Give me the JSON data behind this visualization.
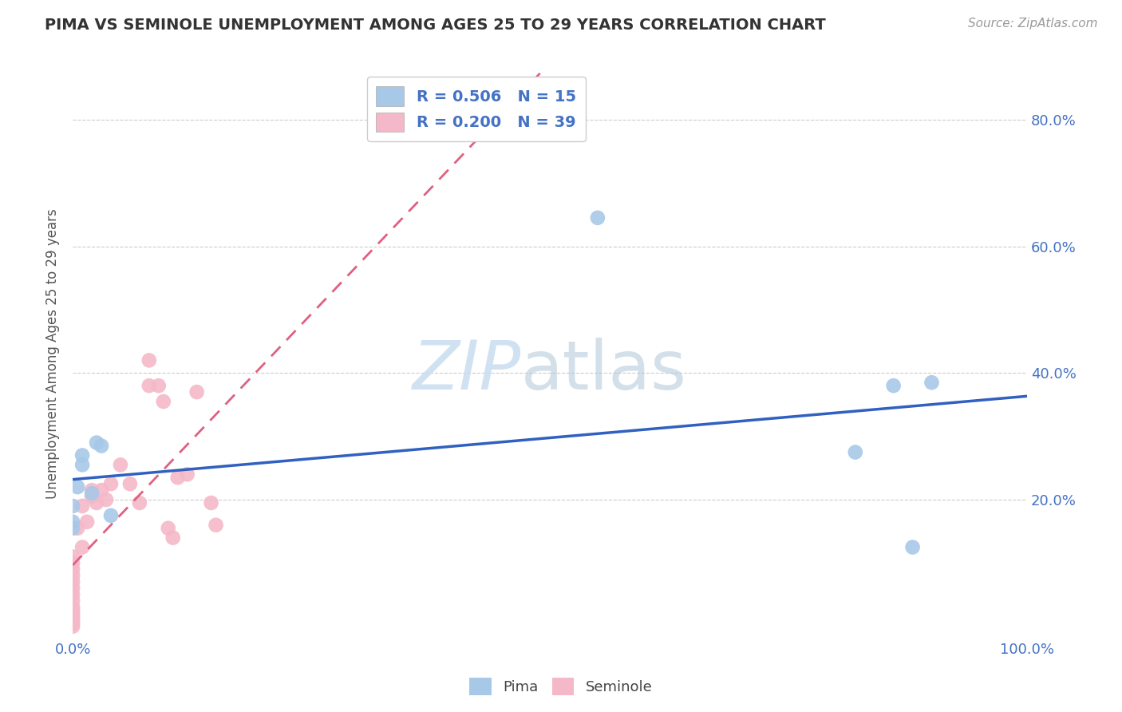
{
  "title": "PIMA VS SEMINOLE UNEMPLOYMENT AMONG AGES 25 TO 29 YEARS CORRELATION CHART",
  "source_text": "Source: ZipAtlas.com",
  "ylabel": "Unemployment Among Ages 25 to 29 years",
  "watermark_zip": "ZIP",
  "watermark_atlas": "atlas",
  "pima_R": 0.506,
  "pima_N": 15,
  "seminole_R": 0.2,
  "seminole_N": 39,
  "pima_color": "#a8c8e8",
  "seminole_color": "#f4b8c8",
  "pima_line_color": "#3060c0",
  "seminole_line_color": "#e06080",
  "xlim": [
    0.0,
    1.0
  ],
  "ylim": [
    -0.02,
    0.88
  ],
  "xtick_positions": [
    0.0,
    1.0
  ],
  "xtick_labels": [
    "0.0%",
    "100.0%"
  ],
  "ytick_positions": [
    0.2,
    0.4,
    0.6,
    0.8
  ],
  "ytick_labels": [
    "20.0%",
    "40.0%",
    "60.0%",
    "80.0%"
  ],
  "pima_x": [
    0.0,
    0.0,
    0.0,
    0.005,
    0.01,
    0.01,
    0.02,
    0.025,
    0.03,
    0.04,
    0.55,
    0.82,
    0.86,
    0.88,
    0.9
  ],
  "pima_y": [
    0.155,
    0.165,
    0.19,
    0.22,
    0.255,
    0.27,
    0.21,
    0.29,
    0.285,
    0.175,
    0.645,
    0.275,
    0.38,
    0.125,
    0.385
  ],
  "seminole_x": [
    0.0,
    0.0,
    0.0,
    0.0,
    0.0,
    0.0,
    0.0,
    0.0,
    0.0,
    0.0,
    0.0,
    0.0,
    0.0,
    0.0,
    0.0,
    0.005,
    0.01,
    0.01,
    0.015,
    0.02,
    0.02,
    0.025,
    0.03,
    0.035,
    0.04,
    0.05,
    0.06,
    0.07,
    0.08,
    0.08,
    0.09,
    0.095,
    0.1,
    0.105,
    0.11,
    0.12,
    0.13,
    0.145,
    0.15
  ],
  "seminole_y": [
    0.0,
    0.005,
    0.01,
    0.015,
    0.02,
    0.025,
    0.03,
    0.04,
    0.05,
    0.06,
    0.07,
    0.08,
    0.09,
    0.1,
    0.11,
    0.155,
    0.125,
    0.19,
    0.165,
    0.205,
    0.215,
    0.195,
    0.215,
    0.2,
    0.225,
    0.255,
    0.225,
    0.195,
    0.38,
    0.42,
    0.38,
    0.355,
    0.155,
    0.14,
    0.235,
    0.24,
    0.37,
    0.195,
    0.16
  ],
  "background_color": "#ffffff",
  "grid_color": "#cccccc",
  "title_color": "#333333",
  "source_color": "#999999",
  "tick_color": "#4472c4",
  "ylabel_color": "#555555",
  "title_fontsize": 14,
  "tick_fontsize": 13,
  "ylabel_fontsize": 12,
  "legend_text_color": "#4472c4",
  "bottom_legend_color": "#444444"
}
